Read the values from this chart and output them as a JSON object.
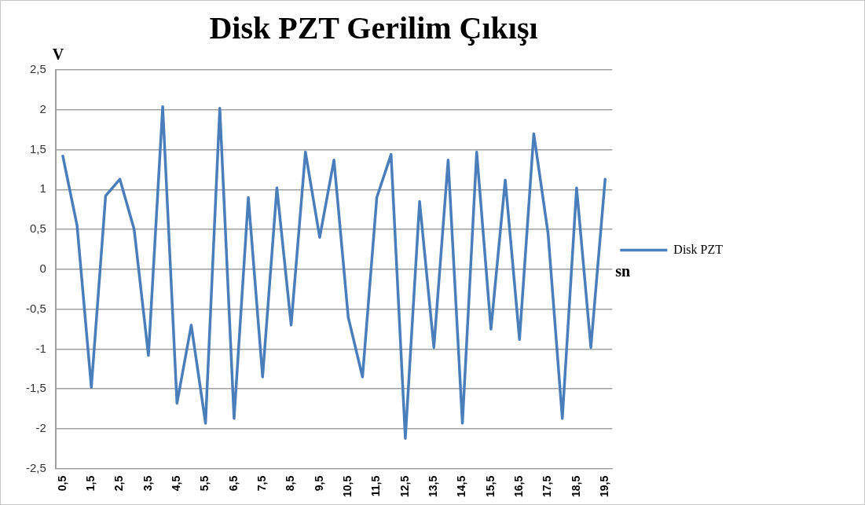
{
  "chart_data": {
    "type": "line",
    "title": "Disk PZT Gerilim Çıkışı",
    "xlabel": "sn",
    "ylabel": "V",
    "categories": [
      "0,5",
      null,
      "1,5",
      null,
      "2,5",
      null,
      "3,5",
      null,
      "4,5",
      null,
      "5,5",
      null,
      "6,5",
      null,
      "7,5",
      null,
      "8,5",
      null,
      "9,5",
      null,
      "10,5",
      null,
      "11,5",
      null,
      "12,5",
      null,
      "13,5",
      null,
      "14,5",
      null,
      "15,5",
      null,
      "16,5",
      null,
      "17,5",
      null,
      "18,5",
      null,
      "19,5"
    ],
    "series": [
      {
        "name": "Disk PZT",
        "color": "#4a7ebb",
        "values": [
          1.42,
          0.55,
          -1.48,
          0.92,
          1.13,
          0.5,
          -1.08,
          2.04,
          -1.68,
          -0.7,
          -1.93,
          2.02,
          -1.87,
          0.9,
          -1.35,
          1.02,
          -0.7,
          1.47,
          0.4,
          1.37,
          -0.6,
          -1.35,
          0.9,
          1.44,
          -2.12,
          0.85,
          -0.98,
          1.37,
          -1.93,
          1.47,
          -0.75,
          1.12,
          -0.88,
          1.7,
          0.45,
          -1.87,
          1.02,
          -0.98,
          1.13
        ]
      }
    ],
    "ylim": [
      -2.5,
      2.5
    ],
    "yticks": [
      {
        "value": -2.5,
        "label": "-2,5"
      },
      {
        "value": -2,
        "label": "-2"
      },
      {
        "value": -1.5,
        "label": "-1,5"
      },
      {
        "value": -1,
        "label": "-1"
      },
      {
        "value": -0.5,
        "label": "-0,5"
      },
      {
        "value": 0,
        "label": "0"
      },
      {
        "value": 0.5,
        "label": "0,5"
      },
      {
        "value": 1,
        "label": "1"
      },
      {
        "value": 1.5,
        "label": "1,5"
      },
      {
        "value": 2,
        "label": "2"
      },
      {
        "value": 2.5,
        "label": "2,5"
      }
    ],
    "grid": "y",
    "legend": "right",
    "marker": "none",
    "line_style": "solid"
  }
}
